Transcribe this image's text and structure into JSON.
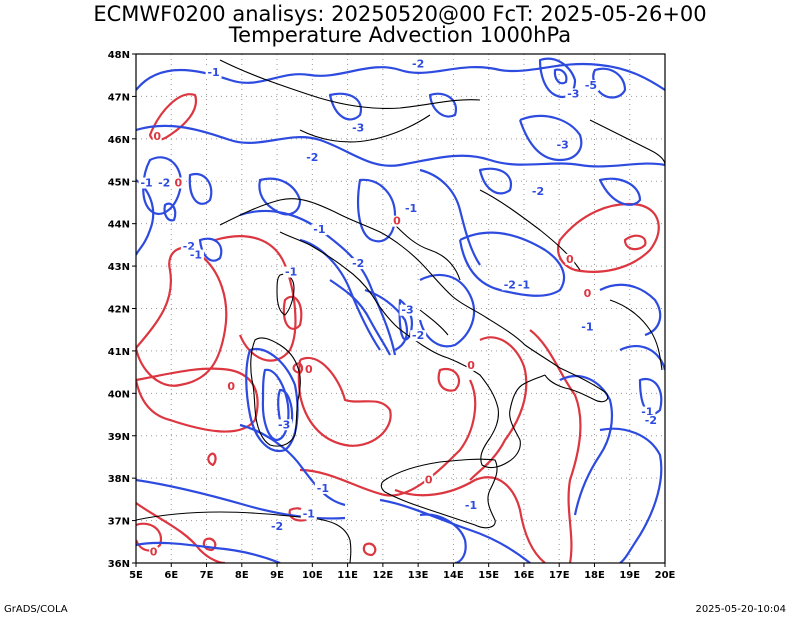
{
  "title_line1": "ECMWF0200 analisys: 20250520@00 FcT: 2025-05-26+00",
  "title_line2": "Temperature Advection 1000hPa",
  "footer_left": "GrADS/COLA",
  "footer_right": "2025-05-20-10:04",
  "map": {
    "lon_range": [
      5,
      20
    ],
    "lat_range": [
      36,
      48
    ],
    "x_ticks": [
      "5E",
      "6E",
      "7E",
      "8E",
      "9E",
      "10E",
      "11E",
      "12E",
      "13E",
      "14E",
      "15E",
      "16E",
      "17E",
      "18E",
      "19E",
      "20E"
    ],
    "y_ticks": [
      "36N",
      "37N",
      "38N",
      "39N",
      "40N",
      "41N",
      "42N",
      "43N",
      "44N",
      "45N",
      "46N",
      "47N",
      "48N"
    ],
    "grid": "dotted",
    "colors": {
      "negative": "#2e4be0",
      "positive": "#dc3640",
      "coast": "#000000",
      "grid": "#999999"
    }
  },
  "contour_labels": [
    {
      "text": "-1",
      "lon": 7.2,
      "lat": 47.5,
      "sign": "neg"
    },
    {
      "text": "-2",
      "lon": 13.0,
      "lat": 47.7,
      "sign": "neg"
    },
    {
      "text": "-3",
      "lon": 17.4,
      "lat": 47.0,
      "sign": "neg"
    },
    {
      "text": "-5",
      "lon": 17.9,
      "lat": 47.2,
      "sign": "neg"
    },
    {
      "text": "-3",
      "lon": 11.3,
      "lat": 46.2,
      "sign": "neg"
    },
    {
      "text": "-2",
      "lon": 10.0,
      "lat": 45.5,
      "sign": "neg"
    },
    {
      "text": "-1",
      "lon": 5.3,
      "lat": 44.9,
      "sign": "neg"
    },
    {
      "text": "-2",
      "lon": 5.8,
      "lat": 44.9,
      "sign": "neg"
    },
    {
      "text": "0",
      "lon": 6.2,
      "lat": 44.9,
      "sign": "pos"
    },
    {
      "text": "0",
      "lon": 5.6,
      "lat": 46.0,
      "sign": "pos"
    },
    {
      "text": "-3",
      "lon": 17.1,
      "lat": 45.8,
      "sign": "neg"
    },
    {
      "text": "-2",
      "lon": 16.4,
      "lat": 44.7,
      "sign": "neg"
    },
    {
      "text": "-1",
      "lon": 12.8,
      "lat": 44.3,
      "sign": "neg"
    },
    {
      "text": "-1",
      "lon": 10.2,
      "lat": 43.8,
      "sign": "neg"
    },
    {
      "text": "0",
      "lon": 12.4,
      "lat": 44.0,
      "sign": "pos"
    },
    {
      "text": "-2",
      "lon": 6.5,
      "lat": 43.4,
      "sign": "neg"
    },
    {
      "text": "-1",
      "lon": 6.7,
      "lat": 43.2,
      "sign": "neg"
    },
    {
      "text": "-2",
      "lon": 11.3,
      "lat": 43.0,
      "sign": "neg"
    },
    {
      "text": "-1",
      "lon": 9.4,
      "lat": 42.8,
      "sign": "neg"
    },
    {
      "text": "-2",
      "lon": 15.6,
      "lat": 42.5,
      "sign": "neg"
    },
    {
      "text": "-1",
      "lon": 16.0,
      "lat": 42.5,
      "sign": "neg"
    },
    {
      "text": "-3",
      "lon": 12.7,
      "lat": 41.9,
      "sign": "neg"
    },
    {
      "text": "-1",
      "lon": 17.8,
      "lat": 41.5,
      "sign": "neg"
    },
    {
      "text": "-2",
      "lon": 13.0,
      "lat": 41.3,
      "sign": "neg"
    },
    {
      "text": "0",
      "lon": 17.3,
      "lat": 43.1,
      "sign": "pos"
    },
    {
      "text": "0",
      "lon": 14.5,
      "lat": 40.6,
      "sign": "pos"
    },
    {
      "text": "0",
      "lon": 9.9,
      "lat": 40.5,
      "sign": "pos"
    },
    {
      "text": "0",
      "lon": 7.7,
      "lat": 40.1,
      "sign": "pos"
    },
    {
      "text": "-3",
      "lon": 9.2,
      "lat": 39.2,
      "sign": "neg"
    },
    {
      "text": "-1",
      "lon": 19.5,
      "lat": 39.5,
      "sign": "neg"
    },
    {
      "text": "-2",
      "lon": 19.6,
      "lat": 39.3,
      "sign": "neg"
    },
    {
      "text": "-1",
      "lon": 10.3,
      "lat": 37.7,
      "sign": "neg"
    },
    {
      "text": "0",
      "lon": 13.3,
      "lat": 37.9,
      "sign": "pos"
    },
    {
      "text": "-1",
      "lon": 14.5,
      "lat": 37.3,
      "sign": "neg"
    },
    {
      "text": "-1",
      "lon": 9.9,
      "lat": 37.1,
      "sign": "neg"
    },
    {
      "text": "-2",
      "lon": 9.0,
      "lat": 36.8,
      "sign": "neg"
    },
    {
      "text": "0",
      "lon": 5.5,
      "lat": 36.2,
      "sign": "pos"
    },
    {
      "text": "0",
      "lon": 17.8,
      "lat": 42.3,
      "sign": "pos"
    }
  ]
}
